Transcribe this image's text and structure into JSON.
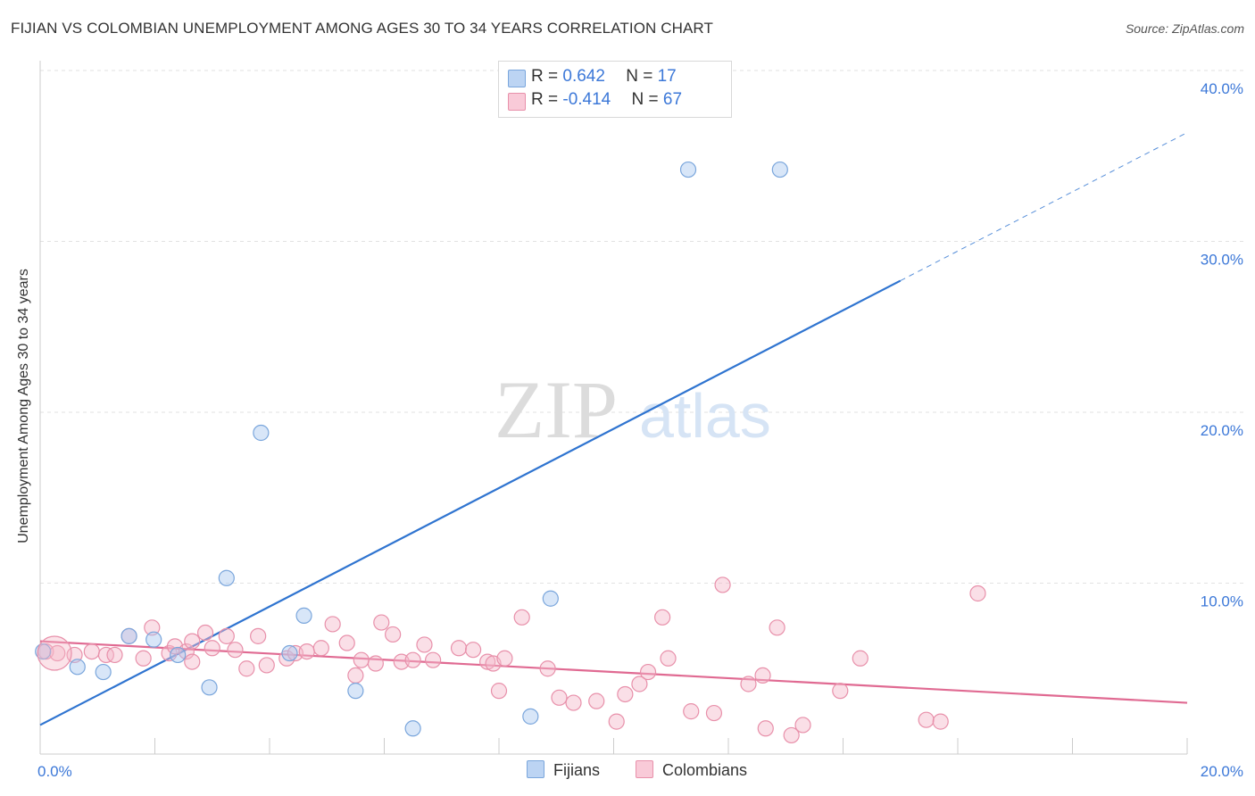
{
  "title": "FIJIAN VS COLOMBIAN UNEMPLOYMENT AMONG AGES 30 TO 34 YEARS CORRELATION CHART",
  "source": "Source: ZipAtlas.com",
  "watermark": {
    "zip": "ZIP",
    "atlas": "atlas"
  },
  "legend_top": [
    {
      "r_label": "R = ",
      "r_value": "0.642",
      "n_label": "N = ",
      "n_value": "17",
      "color": "#a8c8f0"
    },
    {
      "r_label": "R = ",
      "r_value": "-0.414",
      "n_label": "N = ",
      "n_value": "67",
      "color": "#f5b8c9"
    }
  ],
  "legend_bottom": [
    {
      "label": "Fijians",
      "color": "#a8c8f0"
    },
    {
      "label": "Colombians",
      "color": "#f5b8c9"
    }
  ],
  "chart_data": {
    "type": "scatter",
    "title": "FIJIAN VS COLOMBIAN UNEMPLOYMENT AMONG AGES 30 TO 34 YEARS CORRELATION CHART",
    "xlabel": "",
    "ylabel": "Unemployment Among Ages 30 to 34 years",
    "xlim": [
      0,
      20
    ],
    "ylim": [
      0,
      40
    ],
    "x_ticks": [
      "0.0%",
      "20.0%"
    ],
    "y_ticks": [
      {
        "value": 10,
        "label": "10.0%"
      },
      {
        "value": 20,
        "label": "20.0%"
      },
      {
        "value": 30,
        "label": "30.0%"
      },
      {
        "value": 40,
        "label": "40.0%"
      }
    ],
    "grid": true,
    "legend_position": "bottom",
    "series": [
      {
        "name": "Fijians",
        "color": "#a8c8f0",
        "stroke": "#7aa6dc",
        "line_color": "#2f74d0",
        "trend": {
          "x0": 0,
          "y0": 1.7,
          "x1": 15.0,
          "y1": 27.7,
          "x_dash_end": 20.0
        },
        "points": [
          [
            0.05,
            6.0
          ],
          [
            0.65,
            5.1
          ],
          [
            1.1,
            4.8
          ],
          [
            1.55,
            6.9
          ],
          [
            1.98,
            6.7
          ],
          [
            2.4,
            5.8
          ],
          [
            2.95,
            3.9
          ],
          [
            3.25,
            10.3
          ],
          [
            3.85,
            18.8
          ],
          [
            4.35,
            5.9
          ],
          [
            4.6,
            8.1
          ],
          [
            5.5,
            3.7
          ],
          [
            6.5,
            1.5
          ],
          [
            8.55,
            2.2
          ],
          [
            8.9,
            9.1
          ],
          [
            11.3,
            34.2
          ],
          [
            12.9,
            34.2
          ]
        ]
      },
      {
        "name": "Colombians",
        "color": "#f5b8c9",
        "stroke": "#e890aa",
        "line_color": "#e06a92",
        "trend": {
          "x0": 0,
          "y0": 6.6,
          "x1": 20.0,
          "y1": 3.0
        },
        "points": [
          [
            0.1,
            6.0
          ],
          [
            0.3,
            5.9
          ],
          [
            0.6,
            5.8
          ],
          [
            0.9,
            6.0
          ],
          [
            1.15,
            5.8
          ],
          [
            1.3,
            5.8
          ],
          [
            1.55,
            6.9
          ],
          [
            1.8,
            5.6
          ],
          [
            1.95,
            7.4
          ],
          [
            2.25,
            5.9
          ],
          [
            2.35,
            6.3
          ],
          [
            2.55,
            6.0
          ],
          [
            2.65,
            6.6
          ],
          [
            2.65,
            5.4
          ],
          [
            2.88,
            7.1
          ],
          [
            3.0,
            6.2
          ],
          [
            3.25,
            6.9
          ],
          [
            3.4,
            6.1
          ],
          [
            3.6,
            5.0
          ],
          [
            3.8,
            6.9
          ],
          [
            3.95,
            5.2
          ],
          [
            4.3,
            5.6
          ],
          [
            4.45,
            5.9
          ],
          [
            4.65,
            6.0
          ],
          [
            4.9,
            6.2
          ],
          [
            5.1,
            7.6
          ],
          [
            5.35,
            6.5
          ],
          [
            5.5,
            4.6
          ],
          [
            5.6,
            5.5
          ],
          [
            5.85,
            5.3
          ],
          [
            5.95,
            7.7
          ],
          [
            6.15,
            7.0
          ],
          [
            6.3,
            5.4
          ],
          [
            6.5,
            5.5
          ],
          [
            6.7,
            6.4
          ],
          [
            6.85,
            5.5
          ],
          [
            7.3,
            6.2
          ],
          [
            7.55,
            6.1
          ],
          [
            7.8,
            5.4
          ],
          [
            7.9,
            5.3
          ],
          [
            8.0,
            3.7
          ],
          [
            8.1,
            5.6
          ],
          [
            8.4,
            8.0
          ],
          [
            8.85,
            5.0
          ],
          [
            9.05,
            3.3
          ],
          [
            9.3,
            3.0
          ],
          [
            9.7,
            3.1
          ],
          [
            10.05,
            1.9
          ],
          [
            10.2,
            3.5
          ],
          [
            10.45,
            4.1
          ],
          [
            10.6,
            4.8
          ],
          [
            10.85,
            8.0
          ],
          [
            10.95,
            5.6
          ],
          [
            11.35,
            2.5
          ],
          [
            11.75,
            2.4
          ],
          [
            11.9,
            9.9
          ],
          [
            12.35,
            4.1
          ],
          [
            12.6,
            4.6
          ],
          [
            12.65,
            1.5
          ],
          [
            12.85,
            7.4
          ],
          [
            13.1,
            1.1
          ],
          [
            13.3,
            1.7
          ],
          [
            13.95,
            3.7
          ],
          [
            14.3,
            5.6
          ],
          [
            15.45,
            2.0
          ],
          [
            15.7,
            1.9
          ],
          [
            16.35,
            9.4
          ]
        ]
      }
    ],
    "big_point": {
      "series": "Colombians",
      "x": 0.25,
      "y": 5.9
    }
  }
}
